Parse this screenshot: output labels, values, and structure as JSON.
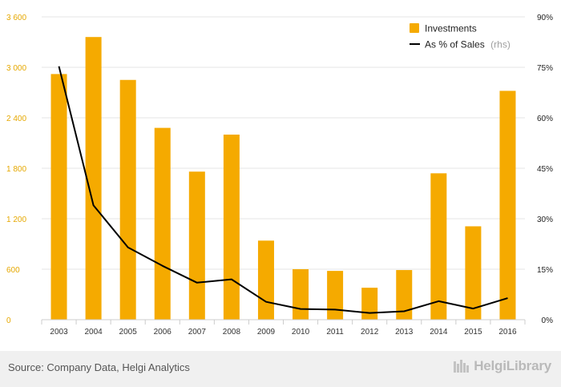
{
  "chart_data": {
    "type": "bar+line",
    "categories": [
      "2003",
      "2004",
      "2005",
      "2006",
      "2007",
      "2008",
      "2009",
      "2010",
      "2011",
      "2012",
      "2013",
      "2014",
      "2015",
      "2016"
    ],
    "series": [
      {
        "name": "Investments",
        "type": "bar",
        "axis": "left",
        "color": "#f5aa00",
        "values": [
          2920,
          3360,
          2850,
          2280,
          1760,
          2200,
          940,
          600,
          580,
          380,
          590,
          1740,
          1110,
          2720
        ]
      },
      {
        "name": "As % of Sales",
        "name_suffix": "(rhs)",
        "type": "line",
        "axis": "right",
        "color": "#000000",
        "values": [
          75.3,
          34.0,
          21.5,
          16.0,
          11.0,
          12.0,
          5.3,
          3.2,
          3.0,
          2.0,
          2.5,
          5.5,
          3.3,
          6.4
        ]
      }
    ],
    "left_axis": {
      "ylim": [
        0,
        3600
      ],
      "ticks": [
        0,
        600,
        1200,
        1800,
        2400,
        3000,
        3600
      ],
      "tick_labels": [
        "0",
        "600",
        "1 200",
        "1 800",
        "2 400",
        "3 000",
        "3 600"
      ]
    },
    "right_axis": {
      "ylim": [
        0,
        90
      ],
      "ticks": [
        0,
        15,
        30,
        45,
        60,
        75,
        90
      ],
      "tick_labels": [
        "0%",
        "15%",
        "30%",
        "45%",
        "60%",
        "75%",
        "90%"
      ]
    },
    "grid": true,
    "legend": "top-right"
  },
  "footer": {
    "source": "Source: Company Data, Helgi Analytics",
    "logo_text": "HelgiLibrary",
    "logo_icon": "helgi-library-logo-icon"
  }
}
